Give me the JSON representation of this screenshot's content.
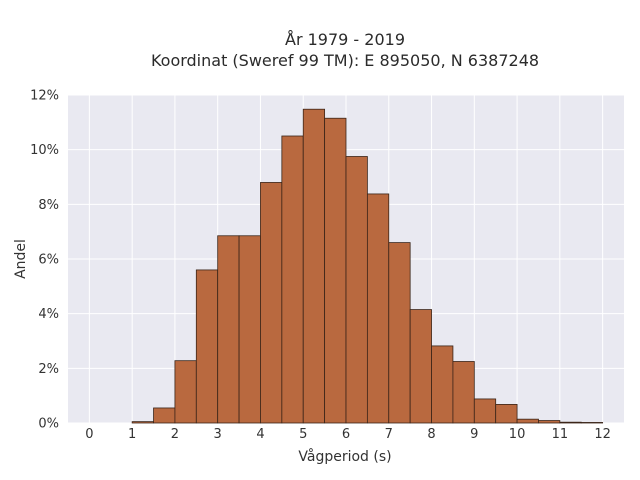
{
  "chart_data": {
    "type": "bar",
    "title_line1": "År 1979 - 2019",
    "title_line2": "Koordinat (Sweref 99 TM): E 895050, N 6387248",
    "xlabel": "Vågperiod (s)",
    "ylabel": "Andel",
    "xlim": [
      -0.5,
      12.5
    ],
    "ylim": [
      0,
      12
    ],
    "x_ticks": [
      0,
      1,
      2,
      3,
      4,
      5,
      6,
      7,
      8,
      9,
      10,
      11,
      12
    ],
    "y_ticks": [
      "0%",
      "2%",
      "4%",
      "6%",
      "8%",
      "10%",
      "12%"
    ],
    "y_tick_values": [
      0,
      2,
      4,
      6,
      8,
      10,
      12
    ],
    "bin_width": 0.5,
    "bins": [
      {
        "x": 1.0,
        "value": 0.05
      },
      {
        "x": 1.5,
        "value": 0.55
      },
      {
        "x": 2.0,
        "value": 2.28
      },
      {
        "x": 2.5,
        "value": 5.6
      },
      {
        "x": 3.0,
        "value": 6.85
      },
      {
        "x": 3.5,
        "value": 6.85
      },
      {
        "x": 4.0,
        "value": 8.8
      },
      {
        "x": 4.5,
        "value": 10.5
      },
      {
        "x": 5.0,
        "value": 11.48
      },
      {
        "x": 5.5,
        "value": 11.15
      },
      {
        "x": 6.0,
        "value": 9.75
      },
      {
        "x": 6.5,
        "value": 8.38
      },
      {
        "x": 7.0,
        "value": 6.6
      },
      {
        "x": 7.5,
        "value": 4.15
      },
      {
        "x": 8.0,
        "value": 2.82
      },
      {
        "x": 8.5,
        "value": 2.25
      },
      {
        "x": 9.0,
        "value": 0.88
      },
      {
        "x": 9.5,
        "value": 0.68
      },
      {
        "x": 10.0,
        "value": 0.14
      },
      {
        "x": 10.5,
        "value": 0.09
      },
      {
        "x": 11.0,
        "value": 0.03
      },
      {
        "x": 11.5,
        "value": 0.02
      }
    ],
    "bar_color": "#b9693f",
    "background_color": "#e9e9f1",
    "grid": true,
    "legend": "none"
  }
}
